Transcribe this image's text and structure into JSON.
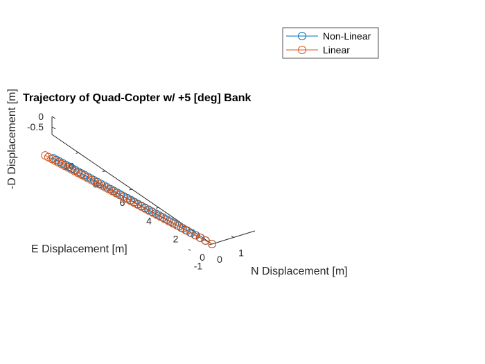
{
  "chart_data": {
    "type": "line",
    "title": "Trajectory of Quad-Copter w/ +5 [deg] Bank",
    "xlabel": "N Displacement [m]",
    "ylabel": "E Displacement [m]",
    "zlabel": "-D Displacement [m]",
    "x_ticks": [
      "-1",
      "0",
      "1"
    ],
    "y_ticks": [
      "0",
      "2",
      "4",
      "6",
      "8",
      "10"
    ],
    "z_ticks": [
      "-0.5",
      "0"
    ],
    "xlim": [
      -1,
      1.5
    ],
    "ylim": [
      0,
      12
    ],
    "zlim": [
      -0.6,
      0
    ],
    "legend_position": "top-right (outside axes)",
    "series": [
      {
        "name": "Non-Linear",
        "color": "#0072BD",
        "marker": "circle",
        "start": {
          "x": 0.0,
          "y": 0.0,
          "z": 0.0
        },
        "end": {
          "x": -0.62,
          "y": 10.9,
          "z": -0.33
        },
        "points": 45
      },
      {
        "name": "Linear",
        "color": "#D95319",
        "marker": "circle",
        "start": {
          "x": 0.0,
          "y": 0.0,
          "z": 0.0
        },
        "end": {
          "x": -0.75,
          "y": 11.3,
          "z": -0.33
        },
        "points": 45
      }
    ]
  }
}
